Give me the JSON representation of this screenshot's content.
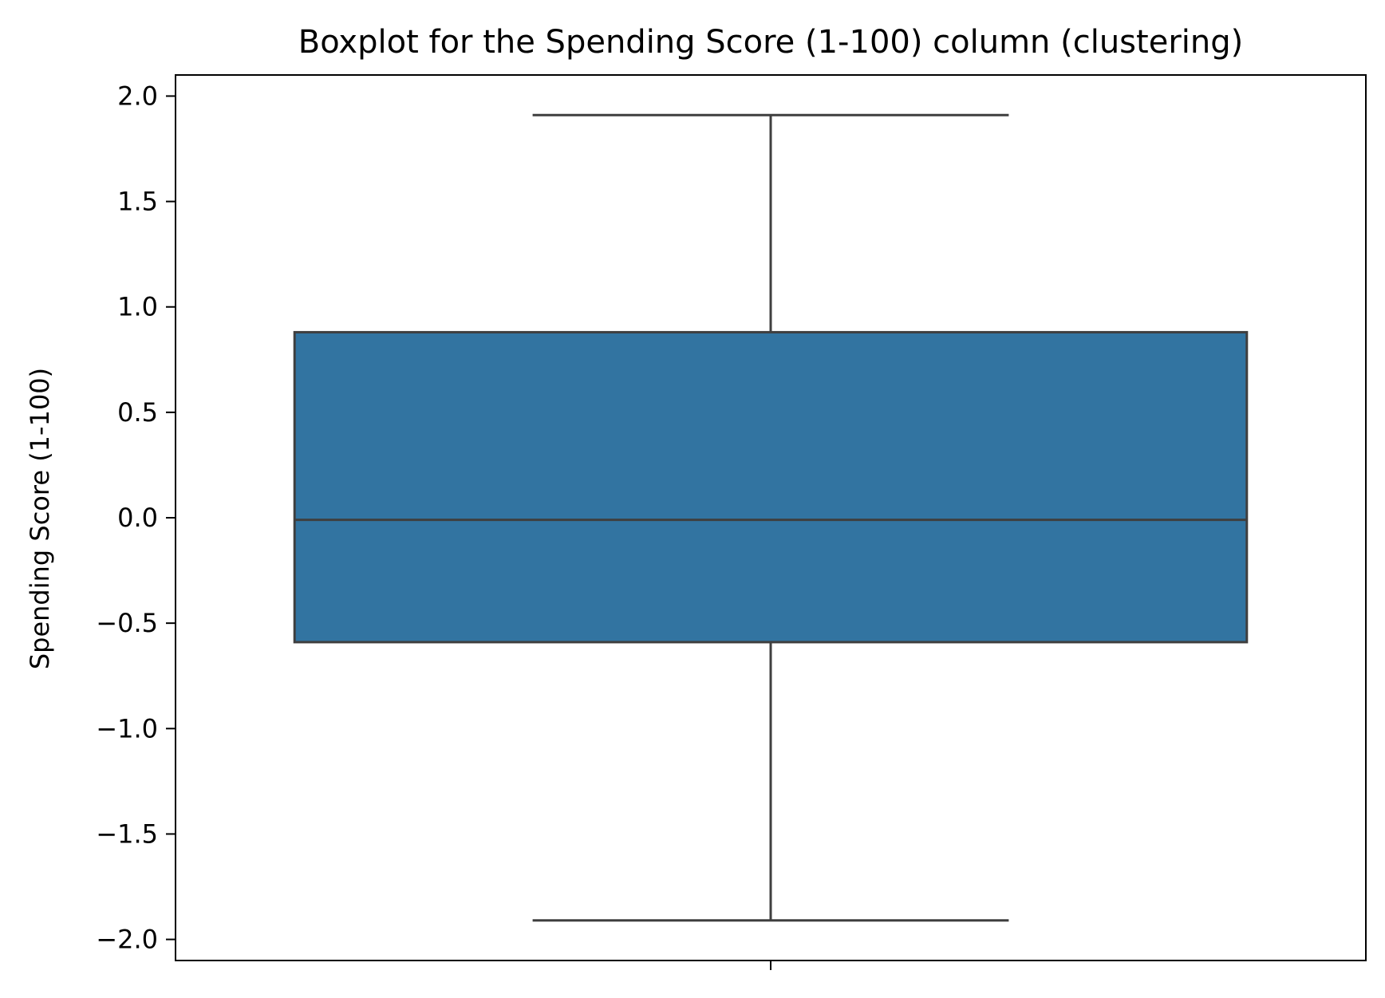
{
  "chart_data": {
    "type": "boxplot",
    "title": "Boxplot for the Spending Score (1-100) column (clustering)",
    "xlabel": "",
    "ylabel": "Spending Score (1-100)",
    "ylim": [
      -2.1,
      2.1
    ],
    "yticks": [
      2.0,
      1.5,
      1.0,
      0.5,
      0.0,
      -0.5,
      -1.0,
      -1.5,
      -2.0
    ],
    "ytick_labels": [
      "2.0",
      "1.5",
      "1.0",
      "0.5",
      "0.0",
      "−0.5",
      "−1.0",
      "−1.5",
      "−2.0"
    ],
    "grid": false,
    "series": [
      {
        "name": "Spending Score (1-100)",
        "whisker_low": -1.91,
        "q1": -0.59,
        "median": -0.01,
        "q3": 0.88,
        "whisker_high": 1.91,
        "outliers": []
      }
    ],
    "colors": {
      "box_fill": "#3274a1",
      "line": "#3f3f3f",
      "axes": "#000000"
    }
  }
}
